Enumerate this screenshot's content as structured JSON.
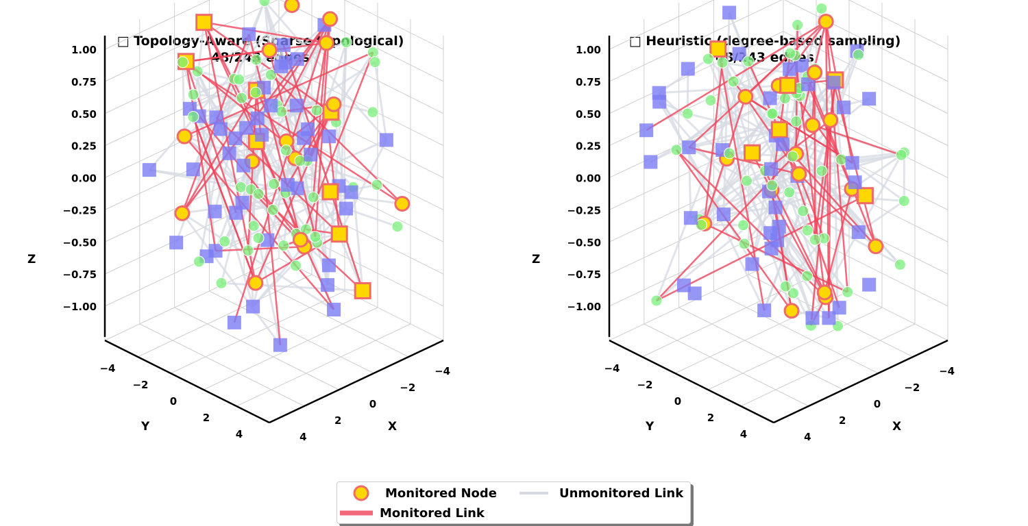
{
  "colors": {
    "monitored_link": "#f0435a",
    "monitored_node_fill": "#ffd700",
    "monitored_node_edge": "#f06a6a",
    "unmonitored_link": "#d5d9e2",
    "node_green": "#7af07a",
    "node_blue": "#7c7cf5",
    "pane": "#ffffff",
    "grid": "#cfcfcf"
  },
  "chart_data": [
    {
      "type": "scatter3d",
      "title_line1": "□ Topology-Aware (Sparse topological)",
      "title_line2": "48/243 edges",
      "xlabel": "X",
      "ylabel": "Y",
      "zlabel": "Z",
      "xlim": [
        -5,
        5
      ],
      "ylim": [
        -5,
        5
      ],
      "zlim": [
        -1,
        1
      ],
      "x_ticks": [
        "−4",
        "−2",
        "0",
        "2",
        "4"
      ],
      "y_ticks": [
        "−4",
        "−2",
        "0",
        "2",
        "4"
      ],
      "z_ticks": [
        "−1.00",
        "−0.75",
        "−0.50",
        "−0.25",
        "0.00",
        "0.25",
        "0.50",
        "0.75",
        "1.00"
      ],
      "total_edges": 243,
      "monitored_edges": 48,
      "seed": 11
    },
    {
      "type": "scatter3d",
      "title_line1": "□ Heuristic (degree-based sampling)",
      "title_line2": "48/243 edges",
      "xlabel": "X",
      "ylabel": "Y",
      "zlabel": "Z",
      "xlim": [
        -5,
        5
      ],
      "ylim": [
        -5,
        5
      ],
      "zlim": [
        -1,
        1
      ],
      "x_ticks": [
        "−4",
        "−2",
        "0",
        "2",
        "4"
      ],
      "y_ticks": [
        "−4",
        "−2",
        "0",
        "2",
        "4"
      ],
      "z_ticks": [
        "−1.00",
        "−0.75",
        "−0.50",
        "−0.25",
        "0.00",
        "0.25",
        "0.50",
        "0.75",
        "1.00"
      ],
      "total_edges": 243,
      "monitored_edges": 48,
      "seed": 29
    }
  ],
  "legend": {
    "monitored_node": "Monitored Node",
    "unmonitored_link": "Unmonitored Link",
    "monitored_link": "Monitored Link"
  }
}
